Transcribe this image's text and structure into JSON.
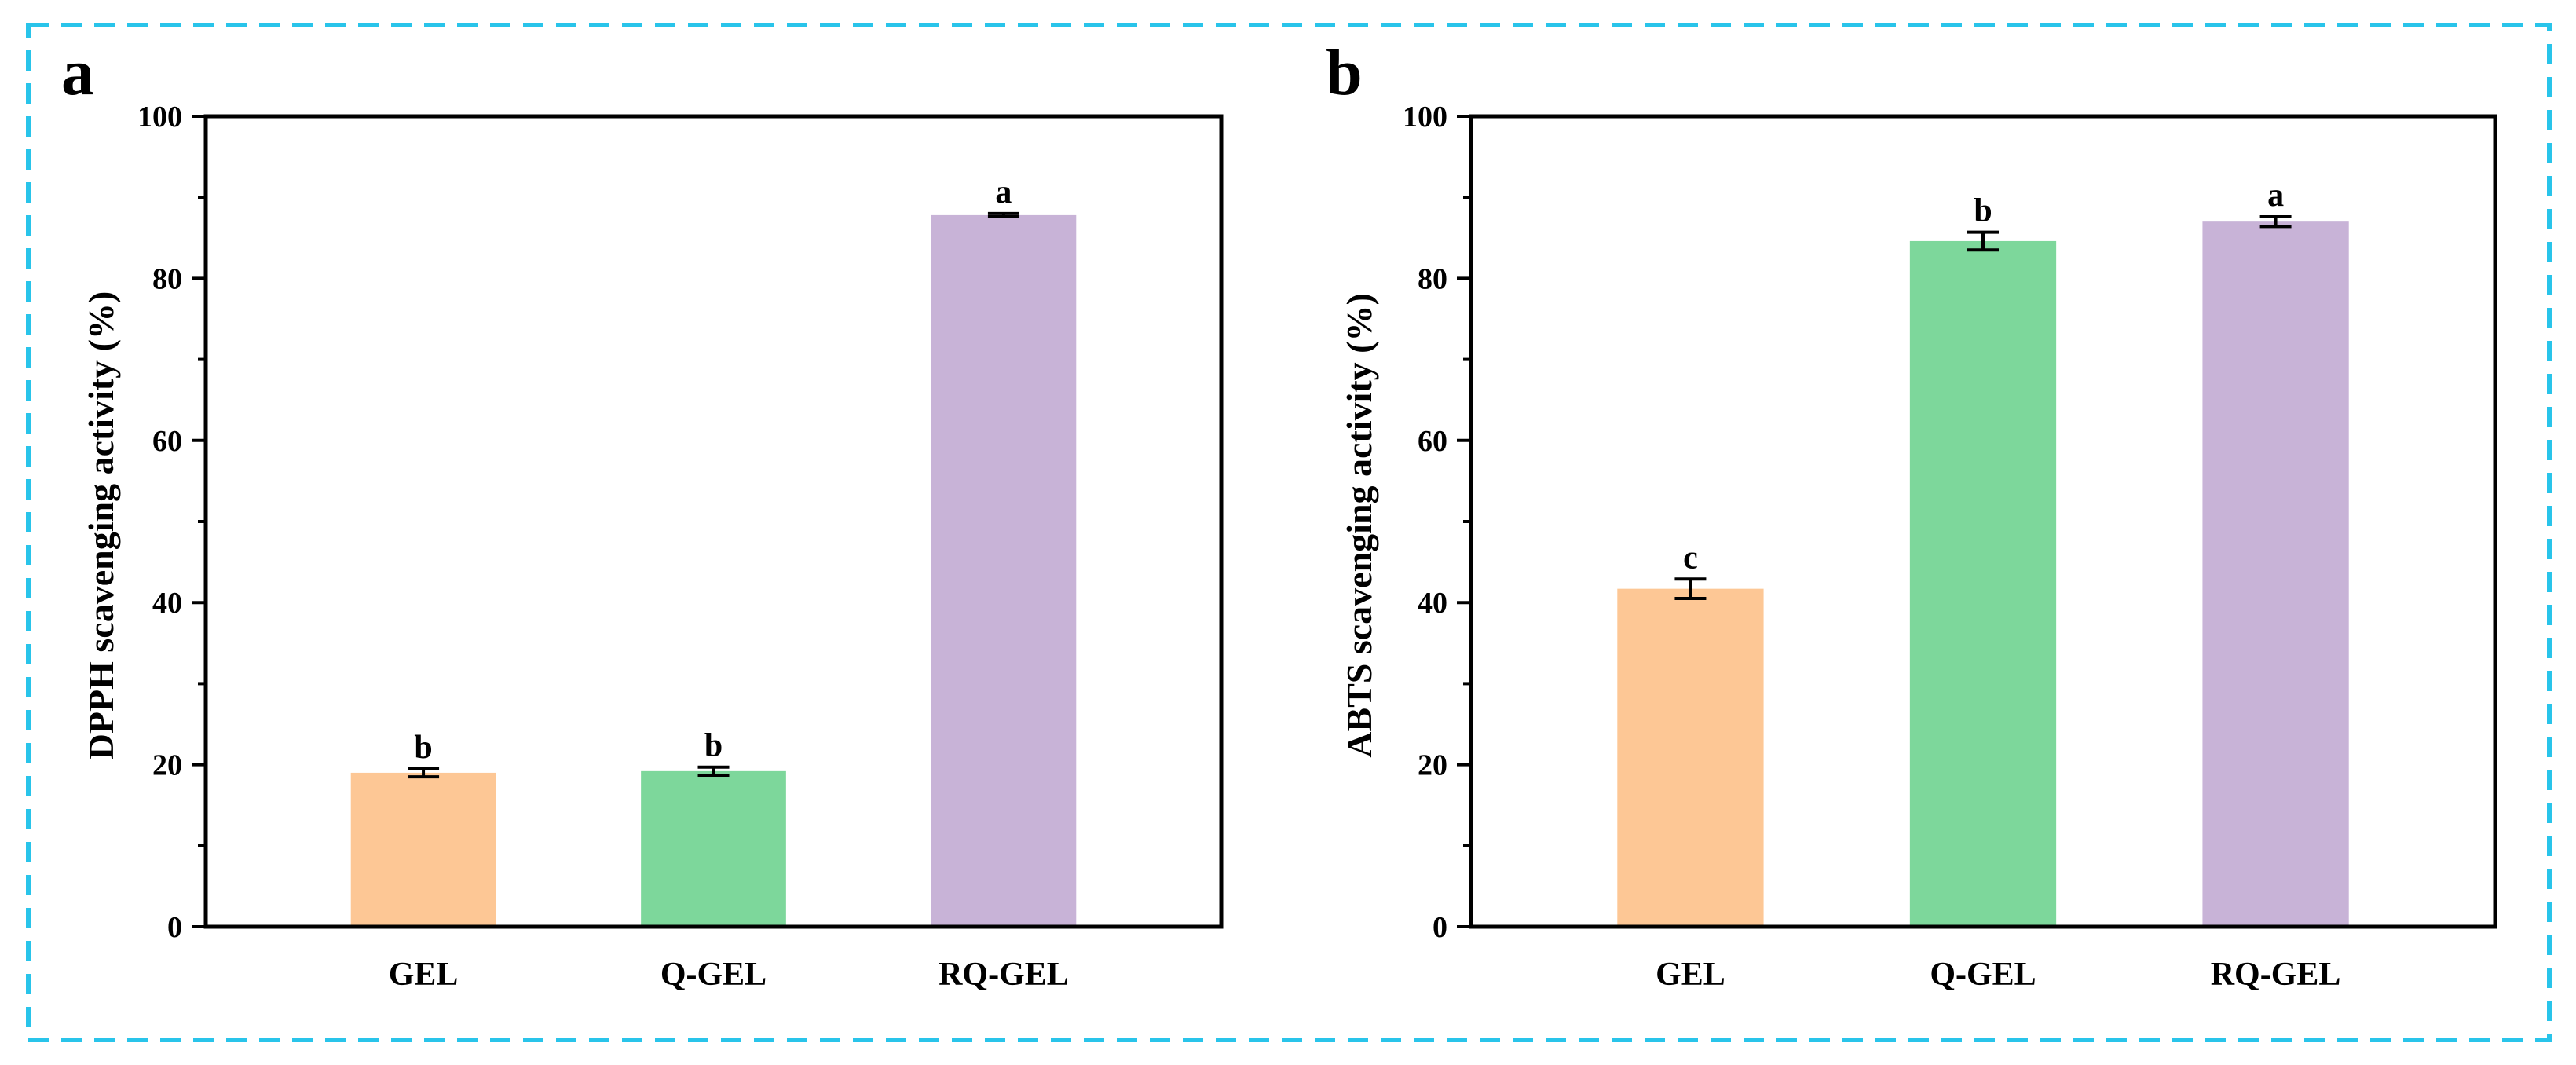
{
  "figure": {
    "border_color": "#29c4ea"
  },
  "chart_data": [
    {
      "type": "bar",
      "panel_label": "a",
      "title": "",
      "xlabel": "",
      "ylabel": "DPPH scavenging activity (%)",
      "ylim": [
        0,
        100
      ],
      "yticks": [
        0,
        20,
        40,
        60,
        80,
        100
      ],
      "categories": [
        "GEL",
        "Q-GEL",
        "RQ-GEL"
      ],
      "values": [
        19.0,
        19.2,
        87.8
      ],
      "errors": [
        0.5,
        0.5,
        0.2
      ],
      "significance": [
        "b",
        "b",
        "a"
      ],
      "colors": [
        "#fdc795",
        "#7dd79b",
        "#c8b3d7"
      ],
      "grid": false,
      "legend": "none"
    },
    {
      "type": "bar",
      "panel_label": "b",
      "title": "",
      "xlabel": "",
      "ylabel": "ABTS scavenging activity (%)",
      "ylim": [
        0,
        100
      ],
      "yticks": [
        0,
        20,
        40,
        60,
        80,
        100
      ],
      "categories": [
        "GEL",
        "Q-GEL",
        "RQ-GEL"
      ],
      "values": [
        41.7,
        84.6,
        87.0
      ],
      "errors": [
        1.2,
        1.1,
        0.6
      ],
      "significance": [
        "c",
        "b",
        "a"
      ],
      "colors": [
        "#fdc795",
        "#7dd79b",
        "#c8b3d7"
      ],
      "grid": false,
      "legend": "none"
    }
  ]
}
